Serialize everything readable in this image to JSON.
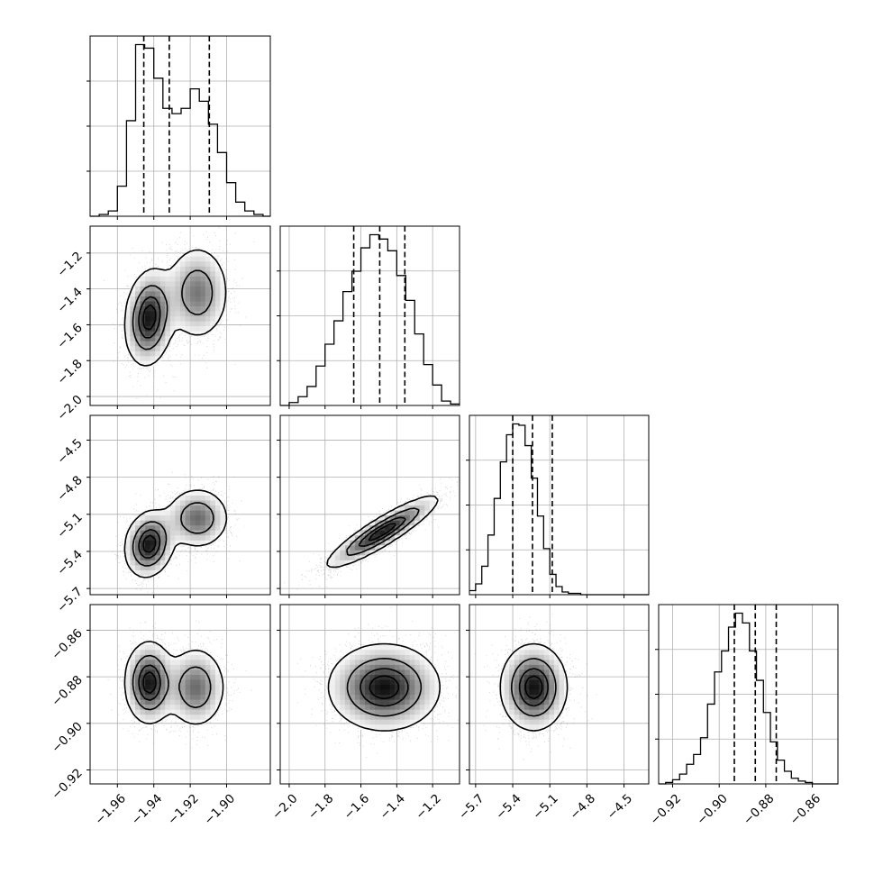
{
  "chart_data": {
    "type": "corner",
    "style": {
      "grid": true,
      "histogram_color": "#000000",
      "quantile_line_style": "dashed"
    },
    "parameters": [
      {
        "range": [
          -1.975,
          -1.876
        ],
        "ticks": [
          -1.96,
          -1.94,
          -1.92,
          -1.9
        ],
        "tick_labels": [
          "−1.96",
          "−1.94",
          "−1.92",
          "−1.90"
        ]
      },
      {
        "range": [
          -2.05,
          -1.05
        ],
        "ticks": [
          -2.0,
          -1.8,
          -1.6,
          -1.4,
          -1.2
        ],
        "tick_labels": [
          "−2.0",
          "−1.8",
          "−1.6",
          "−1.4",
          "−1.2"
        ]
      },
      {
        "range": [
          -5.75,
          -4.3
        ],
        "ticks": [
          -5.7,
          -5.4,
          -5.1,
          -4.8,
          -4.5
        ],
        "tick_labels": [
          "−5.7",
          "−5.4",
          "−5.1",
          "−4.8",
          "−4.5"
        ]
      },
      {
        "range": [
          -0.926,
          -0.849
        ],
        "ticks": [
          -0.92,
          -0.9,
          -0.88,
          -0.86
        ],
        "tick_labels": [
          "−0.92",
          "−0.90",
          "−0.88",
          "−0.86"
        ]
      }
    ],
    "histograms": [
      {
        "param": 0,
        "quantiles": [
          -1.9455,
          -1.9315,
          -1.9095
        ],
        "bin_edges": [
          -1.975,
          -1.97,
          -1.965,
          -1.96,
          -1.955,
          -1.95,
          -1.945,
          -1.94,
          -1.935,
          -1.93,
          -1.925,
          -1.92,
          -1.915,
          -1.91,
          -1.905,
          -1.9,
          -1.895,
          -1.89,
          -1.885,
          -1.88,
          -1.876
        ],
        "counts": [
          0,
          1,
          3,
          17,
          54,
          97,
          95,
          78,
          61,
          58,
          61,
          72,
          65,
          52,
          36,
          19,
          8,
          3,
          1,
          0
        ]
      },
      {
        "param": 1,
        "quantiles": [
          -1.64,
          -1.495,
          -1.355
        ],
        "bin_edges": [
          -2.05,
          -2.0,
          -1.95,
          -1.9,
          -1.85,
          -1.8,
          -1.75,
          -1.7,
          -1.65,
          -1.6,
          -1.55,
          -1.5,
          -1.45,
          -1.4,
          -1.35,
          -1.3,
          -1.25,
          -1.2,
          -1.15,
          -1.1,
          -1.05
        ],
        "counts": [
          0,
          2,
          6,
          13,
          27,
          42,
          58,
          78,
          92,
          108,
          117,
          114,
          106,
          89,
          72,
          49,
          28,
          14,
          3,
          1
        ]
      },
      {
        "param": 2,
        "quantiles": [
          -5.4,
          -5.24,
          -5.08
        ],
        "bin_edges": [
          -5.75,
          -5.7,
          -5.65,
          -5.6,
          -5.55,
          -5.5,
          -5.45,
          -5.4,
          -5.35,
          -5.3,
          -5.25,
          -5.2,
          -5.15,
          -5.1,
          -5.05,
          -5.0,
          -4.95,
          -4.9,
          -4.85,
          -4.8,
          -4.75,
          -4.7,
          -4.65,
          -4.6,
          -4.55,
          -4.5,
          -4.45,
          -4.4,
          -4.35,
          -4.3
        ],
        "counts": [
          3,
          8,
          21,
          44,
          71,
          98,
          118,
          126,
          125,
          110,
          86,
          58,
          34,
          15,
          6,
          2,
          1,
          1,
          0,
          0,
          0,
          0,
          0,
          0,
          0,
          0,
          0,
          0,
          0
        ]
      },
      {
        "param": 3,
        "quantiles": [
          -0.8935,
          -0.8845,
          -0.8755
        ],
        "bin_edges": [
          -0.926,
          -0.923,
          -0.92,
          -0.917,
          -0.914,
          -0.911,
          -0.908,
          -0.905,
          -0.902,
          -0.899,
          -0.896,
          -0.893,
          -0.89,
          -0.887,
          -0.884,
          -0.881,
          -0.878,
          -0.875,
          -0.872,
          -0.869,
          -0.866,
          -0.863,
          -0.86,
          -0.857,
          -0.854,
          -0.851,
          -0.849
        ],
        "counts": [
          0,
          1,
          3,
          7,
          14,
          21,
          33,
          57,
          80,
          95,
          112,
          122,
          115,
          95,
          74,
          51,
          30,
          17,
          9,
          4,
          2,
          1,
          0,
          0,
          0,
          0
        ]
      }
    ],
    "pairs": [
      {
        "x_param": 0,
        "y_param": 1,
        "modes": [
          {
            "center": [
              -1.9425,
              -1.56
            ],
            "sigma": [
              0.0065,
              0.13
            ],
            "rho": 0.15,
            "weight": 0.55
          },
          {
            "center": [
              -1.916,
              -1.42
            ],
            "sigma": [
              0.0085,
              0.13
            ],
            "rho": 0.0,
            "weight": 0.45
          }
        ]
      },
      {
        "x_param": 0,
        "y_param": 2,
        "modes": [
          {
            "center": [
              -1.9425,
              -5.34
            ],
            "sigma": [
              0.0065,
              0.13
            ],
            "rho": 0.15,
            "weight": 0.55
          },
          {
            "center": [
              -1.916,
              -5.13
            ],
            "sigma": [
              0.0085,
              0.12
            ],
            "rho": 0.0,
            "weight": 0.45
          }
        ]
      },
      {
        "x_param": 1,
        "y_param": 2,
        "modes": [
          {
            "center": [
              -1.48,
              -5.24
            ],
            "sigma": [
              0.15,
              0.14
            ],
            "rho": 0.9,
            "weight": 1.0
          }
        ]
      },
      {
        "x_param": 0,
        "y_param": 3,
        "modes": [
          {
            "center": [
              -1.9425,
              -0.8825
            ],
            "sigma": [
              0.0065,
              0.0085
            ],
            "rho": 0.0,
            "weight": 0.55
          },
          {
            "center": [
              -1.917,
              -0.8845
            ],
            "sigma": [
              0.008,
              0.0085
            ],
            "rho": 0.0,
            "weight": 0.45
          }
        ]
      },
      {
        "x_param": 1,
        "y_param": 3,
        "modes": [
          {
            "center": [
              -1.47,
              -0.8845
            ],
            "sigma": [
              0.15,
              0.009
            ],
            "rho": 0.0,
            "weight": 1.0
          }
        ]
      },
      {
        "x_param": 2,
        "y_param": 3,
        "modes": [
          {
            "center": [
              -5.23,
              -0.8845
            ],
            "sigma": [
              0.13,
              0.009
            ],
            "rho": 0.0,
            "weight": 1.0
          }
        ]
      }
    ],
    "contour_levels": [
      0.118,
      0.393,
      0.675,
      0.865
    ]
  }
}
